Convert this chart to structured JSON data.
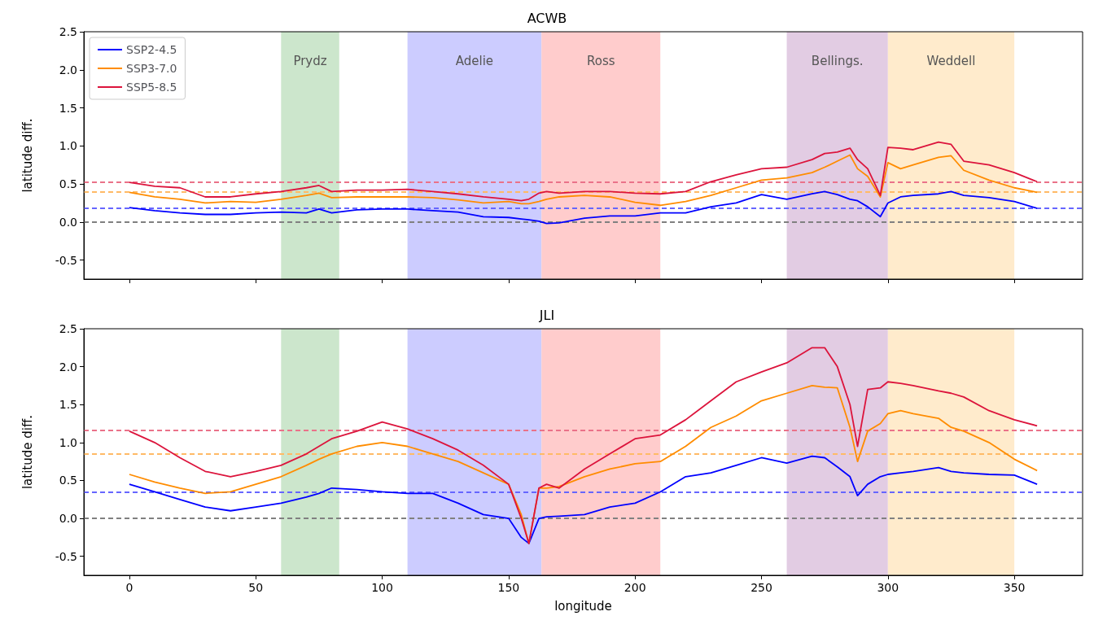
{
  "chart_data": [
    {
      "type": "line",
      "title": "ACWB",
      "ylabel": "latitude diff.",
      "x": [
        0,
        10,
        20,
        30,
        40,
        50,
        60,
        70,
        75,
        80,
        90,
        100,
        110,
        120,
        130,
        140,
        150,
        155,
        158,
        162,
        165,
        170,
        180,
        190,
        200,
        210,
        220,
        230,
        240,
        250,
        260,
        270,
        275,
        280,
        285,
        288,
        292,
        297,
        300,
        305,
        310,
        320,
        325,
        330,
        340,
        350,
        359
      ],
      "series": [
        {
          "name": "SSP2-4.5",
          "color": "#0000ff",
          "values": [
            0.19,
            0.15,
            0.12,
            0.1,
            0.1,
            0.12,
            0.13,
            0.12,
            0.17,
            0.12,
            0.16,
            0.17,
            0.17,
            0.15,
            0.13,
            0.07,
            0.06,
            0.04,
            0.03,
            0.01,
            -0.02,
            -0.01,
            0.05,
            0.08,
            0.08,
            0.12,
            0.12,
            0.2,
            0.25,
            0.36,
            0.3,
            0.37,
            0.4,
            0.36,
            0.3,
            0.28,
            0.2,
            0.07,
            0.25,
            0.33,
            0.35,
            0.37,
            0.4,
            0.35,
            0.32,
            0.27,
            0.18
          ]
        },
        {
          "name": "SSP3-7.0",
          "color": "#ff8c00",
          "values": [
            0.39,
            0.33,
            0.3,
            0.25,
            0.27,
            0.26,
            0.3,
            0.35,
            0.38,
            0.32,
            0.33,
            0.33,
            0.33,
            0.32,
            0.29,
            0.25,
            0.27,
            0.24,
            0.24,
            0.27,
            0.3,
            0.33,
            0.35,
            0.33,
            0.26,
            0.22,
            0.27,
            0.35,
            0.45,
            0.55,
            0.58,
            0.65,
            0.72,
            0.8,
            0.88,
            0.7,
            0.6,
            0.33,
            0.78,
            0.7,
            0.75,
            0.85,
            0.87,
            0.68,
            0.55,
            0.45,
            0.39
          ]
        },
        {
          "name": "SSP5-8.5",
          "color": "#dc143c",
          "values": [
            0.52,
            0.47,
            0.45,
            0.33,
            0.33,
            0.37,
            0.4,
            0.45,
            0.48,
            0.4,
            0.42,
            0.42,
            0.43,
            0.4,
            0.37,
            0.33,
            0.3,
            0.28,
            0.3,
            0.38,
            0.4,
            0.38,
            0.4,
            0.4,
            0.38,
            0.37,
            0.4,
            0.53,
            0.62,
            0.7,
            0.72,
            0.82,
            0.9,
            0.92,
            0.97,
            0.82,
            0.7,
            0.35,
            0.98,
            0.97,
            0.95,
            1.05,
            1.02,
            0.8,
            0.75,
            0.65,
            0.53
          ]
        }
      ],
      "xlim": [
        -18,
        377
      ],
      "xticks": [
        0,
        50,
        100,
        150,
        200,
        250,
        300,
        350
      ],
      "ylim": [
        -0.75,
        2.5
      ],
      "yticks": [
        -0.5,
        {
          "value": 0,
          "label": "0.0"
        },
        0.5,
        {
          "value": 1,
          "label": "1.0"
        },
        1.5,
        {
          "value": 2,
          "label": "2.0"
        },
        2.5
      ],
      "tick_labels": "y",
      "legend": "top left",
      "grid": false,
      "ref_lines": [
        {
          "axis": "y",
          "value": 0.53,
          "label": null,
          "color": "#ea7289",
          "line_style": "dashed"
        },
        {
          "axis": "y",
          "value": 0.4,
          "label": null,
          "color": "#ffba66",
          "line_style": "dashed"
        },
        {
          "axis": "y",
          "value": 0.18,
          "label": null,
          "color": "#6666ff",
          "line_style": "dashed"
        },
        {
          "axis": "y",
          "value": 0,
          "label": null,
          "color": "#808080",
          "line_style": "dashed"
        }
      ],
      "bands": [
        {
          "axis": "x",
          "from": 60,
          "to": 83,
          "label": "Prydz",
          "color": "#cce6cc"
        },
        {
          "axis": "x",
          "from": 110,
          "to": 163,
          "label": "Adelie",
          "color": "#ccccff"
        },
        {
          "axis": "x",
          "from": 163,
          "to": 210,
          "label": "Ross",
          "color": "#ffcccc"
        },
        {
          "axis": "x",
          "from": 260,
          "to": 300,
          "label": "Bellings.",
          "color": "#e2cce3"
        },
        {
          "axis": "x",
          "from": 300,
          "to": 350,
          "label": "Weddell",
          "color": "#ffebcc"
        }
      ]
    },
    {
      "type": "line",
      "title": "JLI",
      "ylabel": "latitude diff.",
      "xlabel": "longitude",
      "x": [
        0,
        10,
        20,
        30,
        40,
        50,
        60,
        70,
        75,
        80,
        90,
        100,
        110,
        120,
        130,
        140,
        150,
        155,
        158,
        162,
        165,
        170,
        180,
        190,
        200,
        210,
        220,
        230,
        240,
        250,
        260,
        270,
        275,
        280,
        285,
        288,
        292,
        297,
        300,
        305,
        310,
        320,
        325,
        330,
        340,
        350,
        359
      ],
      "series": [
        {
          "color": "#0000ff",
          "values": [
            0.45,
            0.35,
            0.25,
            0.15,
            0.1,
            0.15,
            0.2,
            0.28,
            0.33,
            0.4,
            0.38,
            0.35,
            0.33,
            0.33,
            0.2,
            0.05,
            0.0,
            -0.25,
            -0.33,
            0.0,
            0.02,
            0.03,
            0.05,
            0.15,
            0.2,
            0.35,
            0.55,
            0.6,
            0.7,
            0.8,
            0.73,
            0.82,
            0.8,
            0.68,
            0.55,
            0.3,
            0.45,
            0.55,
            0.58,
            0.6,
            0.62,
            0.67,
            0.62,
            0.6,
            0.58,
            0.57,
            0.45
          ]
        },
        {
          "color": "#ff8c00",
          "values": [
            0.58,
            0.48,
            0.4,
            0.33,
            0.35,
            0.45,
            0.55,
            0.7,
            0.78,
            0.85,
            0.95,
            1.0,
            0.95,
            0.85,
            0.75,
            0.6,
            0.45,
            0.05,
            -0.33,
            0.4,
            0.4,
            0.42,
            0.55,
            0.65,
            0.72,
            0.75,
            0.95,
            1.2,
            1.35,
            1.55,
            1.65,
            1.75,
            1.73,
            1.72,
            1.2,
            0.75,
            1.15,
            1.25,
            1.38,
            1.42,
            1.38,
            1.32,
            1.2,
            1.15,
            1.0,
            0.78,
            0.63
          ]
        },
        {
          "color": "#dc143c",
          "values": [
            1.15,
            1.0,
            0.8,
            0.62,
            0.55,
            0.62,
            0.7,
            0.85,
            0.95,
            1.05,
            1.15,
            1.27,
            1.18,
            1.05,
            0.9,
            0.7,
            0.45,
            0.0,
            -0.33,
            0.4,
            0.45,
            0.4,
            0.65,
            0.85,
            1.05,
            1.1,
            1.3,
            1.55,
            1.8,
            1.93,
            2.05,
            2.25,
            2.25,
            2.0,
            1.5,
            0.95,
            1.7,
            1.72,
            1.8,
            1.78,
            1.75,
            1.68,
            1.65,
            1.6,
            1.42,
            1.3,
            1.22
          ]
        }
      ],
      "xlim": [
        -18,
        377
      ],
      "xticks": [
        0,
        50,
        100,
        150,
        200,
        250,
        300,
        350
      ],
      "ylim": [
        -0.75,
        2.5
      ],
      "yticks": [
        -0.5,
        {
          "value": 0,
          "label": "0.0"
        },
        0.5,
        {
          "value": 1,
          "label": "1.0"
        },
        1.5,
        {
          "value": 2,
          "label": "2.0"
        },
        2.5
      ],
      "grid": false,
      "ref_lines": [
        {
          "axis": "y",
          "value": 1.16,
          "label": null,
          "color": "#ea7289",
          "line_style": "dashed"
        },
        {
          "axis": "y",
          "value": 0.85,
          "label": null,
          "color": "#ffba66",
          "line_style": "dashed"
        },
        {
          "axis": "y",
          "value": 0.35,
          "label": null,
          "color": "#6666ff",
          "line_style": "dashed"
        },
        {
          "axis": "y",
          "value": 0,
          "label": null,
          "color": "#808080",
          "line_style": "dashed"
        }
      ],
      "bands": [
        {
          "axis": "x",
          "from": 60,
          "to": 83,
          "label": null,
          "color": "#cce6cc"
        },
        {
          "axis": "x",
          "from": 110,
          "to": 163,
          "label": null,
          "color": "#ccccff"
        },
        {
          "axis": "x",
          "from": 163,
          "to": 210,
          "label": null,
          "color": "#ffcccc"
        },
        {
          "axis": "x",
          "from": 260,
          "to": 300,
          "label": null,
          "color": "#e2cce3"
        },
        {
          "axis": "x",
          "from": 300,
          "to": 350,
          "label": null,
          "color": "#ffebcc"
        }
      ]
    }
  ]
}
